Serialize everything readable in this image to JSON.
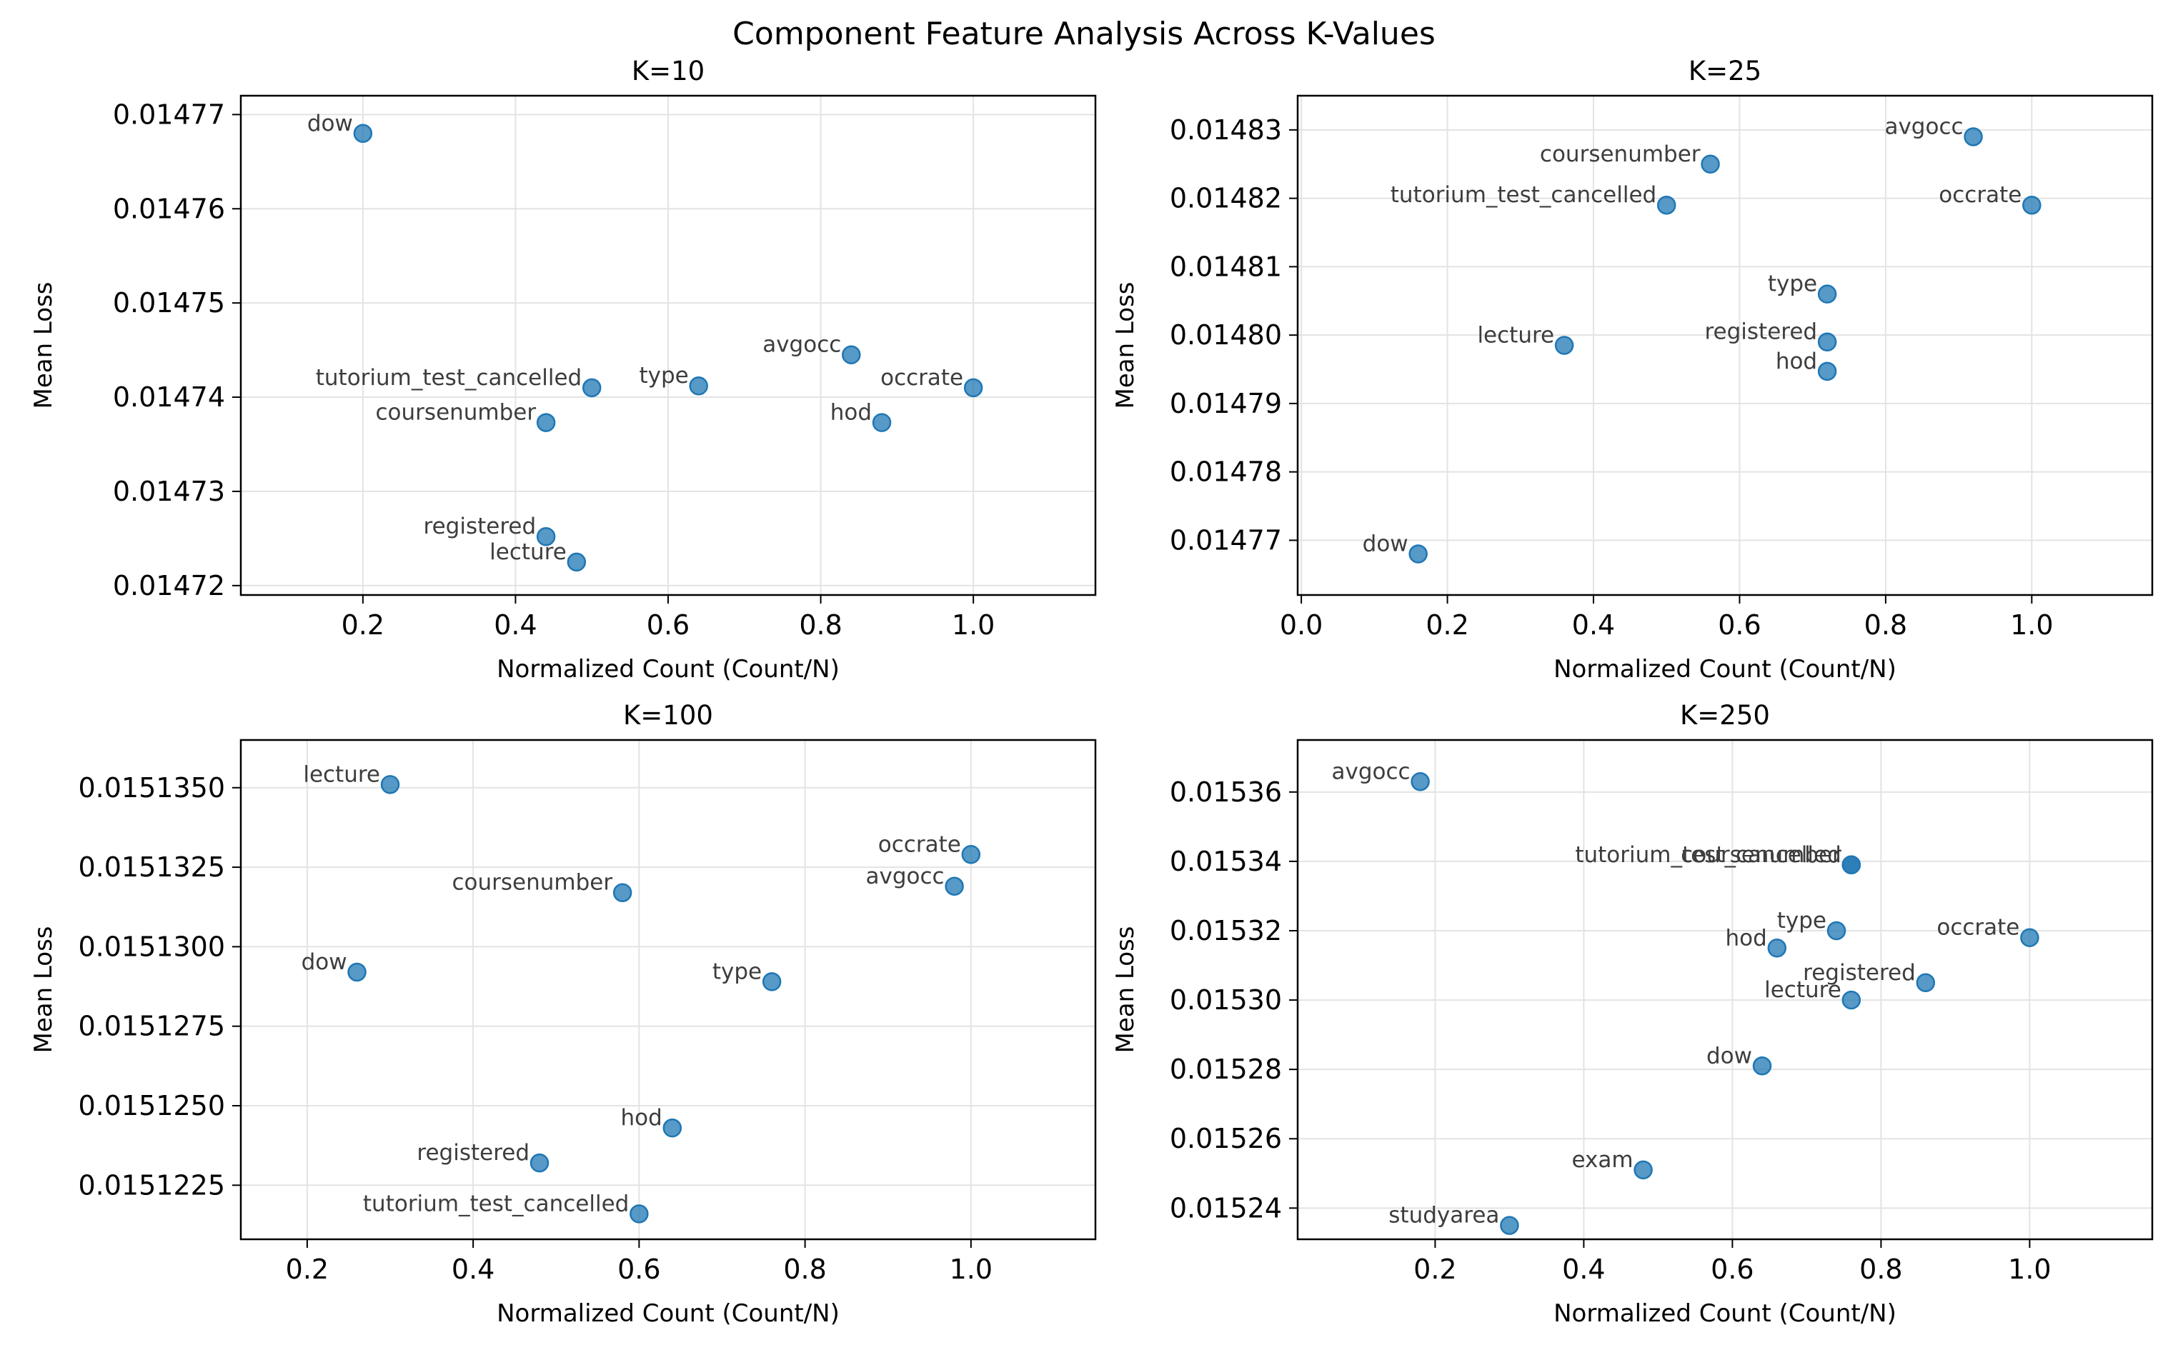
{
  "suptitle": "Component Feature Analysis Across K-Values",
  "colors": {
    "point": "#1f77b4",
    "grid": "#e3e3e3",
    "axis": "#000000",
    "label": "#3d3d3d"
  },
  "chart_data": [
    {
      "type": "scatter",
      "title": "K=10",
      "xlabel": "Normalized Count (Count/N)",
      "ylabel": "Mean Loss",
      "xlim": [
        0.04,
        1.16
      ],
      "ylim": [
        0.014719,
        0.014772
      ],
      "xticks": [
        0.2,
        0.4,
        0.6,
        0.8,
        1.0
      ],
      "xtick_labels": [
        "0.2",
        "0.4",
        "0.6",
        "0.8",
        "1.0"
      ],
      "yticks": [
        0.01472,
        0.01473,
        0.01474,
        0.01475,
        0.01476,
        0.01477
      ],
      "ytick_labels": [
        "0.01472",
        "0.01473",
        "0.01474",
        "0.01475",
        "0.01476",
        "0.01477"
      ],
      "grid": true,
      "points": [
        {
          "label": "dow",
          "x": 0.2,
          "y": 0.014768
        },
        {
          "label": "avgocc",
          "x": 0.84,
          "y": 0.0147445
        },
        {
          "label": "tutorium_test_cancelled",
          "x": 0.5,
          "y": 0.014741
        },
        {
          "label": "type",
          "x": 0.64,
          "y": 0.0147412
        },
        {
          "label": "occrate",
          "x": 1.0,
          "y": 0.014741
        },
        {
          "label": "coursenumber",
          "x": 0.44,
          "y": 0.0147373
        },
        {
          "label": "hod",
          "x": 0.88,
          "y": 0.0147373
        },
        {
          "label": "registered",
          "x": 0.44,
          "y": 0.0147252
        },
        {
          "label": "lecture",
          "x": 0.48,
          "y": 0.0147225
        }
      ]
    },
    {
      "type": "scatter",
      "title": "K=25",
      "xlabel": "Normalized Count (Count/N)",
      "ylabel": "Mean Loss",
      "xlim": [
        -0.005,
        1.165
      ],
      "ylim": [
        0.014762,
        0.014835
      ],
      "xticks": [
        0.0,
        0.2,
        0.4,
        0.6,
        0.8,
        1.0
      ],
      "xtick_labels": [
        "0.0",
        "0.2",
        "0.4",
        "0.6",
        "0.8",
        "1.0"
      ],
      "yticks": [
        0.01477,
        0.01478,
        0.01479,
        0.0148,
        0.01481,
        0.01482,
        0.01483
      ],
      "ytick_labels": [
        "0.01477",
        "0.01478",
        "0.01479",
        "0.01480",
        "0.01481",
        "0.01482",
        "0.01483"
      ],
      "grid": true,
      "points": [
        {
          "label": "avgocc",
          "x": 0.92,
          "y": 0.014829
        },
        {
          "label": "coursenumber",
          "x": 0.56,
          "y": 0.014825
        },
        {
          "label": "tutorium_test_cancelled",
          "x": 0.5,
          "y": 0.014819
        },
        {
          "label": "occrate",
          "x": 1.0,
          "y": 0.014819
        },
        {
          "label": "type",
          "x": 0.72,
          "y": 0.014806
        },
        {
          "label": "registered",
          "x": 0.72,
          "y": 0.014799
        },
        {
          "label": "lecture",
          "x": 0.36,
          "y": 0.0147985
        },
        {
          "label": "hod",
          "x": 0.72,
          "y": 0.0147947
        },
        {
          "label": "dow",
          "x": 0.16,
          "y": 0.014768
        }
      ]
    },
    {
      "type": "scatter",
      "title": "K=100",
      "xlabel": "Normalized Count (Count/N)",
      "ylabel": "Mean Loss",
      "xlim": [
        0.12,
        1.15
      ],
      "ylim": [
        0.0151208,
        0.0151365
      ],
      "xticks": [
        0.2,
        0.4,
        0.6,
        0.8,
        1.0
      ],
      "xtick_labels": [
        "0.2",
        "0.4",
        "0.6",
        "0.8",
        "1.0"
      ],
      "yticks": [
        0.0151225,
        0.015125,
        0.0151275,
        0.01513,
        0.0151325,
        0.015135
      ],
      "ytick_labels": [
        "0.0151225",
        "0.0151250",
        "0.0151275",
        "0.0151300",
        "0.0151325",
        "0.0151350"
      ],
      "grid": true,
      "points": [
        {
          "label": "lecture",
          "x": 0.3,
          "y": 0.0151351
        },
        {
          "label": "occrate",
          "x": 1.0,
          "y": 0.0151329
        },
        {
          "label": "coursenumber",
          "x": 0.58,
          "y": 0.0151317
        },
        {
          "label": "avgocc",
          "x": 0.98,
          "y": 0.0151319
        },
        {
          "label": "dow",
          "x": 0.26,
          "y": 0.0151292
        },
        {
          "label": "type",
          "x": 0.76,
          "y": 0.0151289
        },
        {
          "label": "hod",
          "x": 0.64,
          "y": 0.0151243
        },
        {
          "label": "registered",
          "x": 0.48,
          "y": 0.0151232
        },
        {
          "label": "tutorium_test_cancelled",
          "x": 0.6,
          "y": 0.0151216
        }
      ]
    },
    {
      "type": "scatter",
      "title": "K=250",
      "xlabel": "Normalized Count (Count/N)",
      "ylabel": "Mean Loss",
      "xlim": [
        0.015,
        1.165
      ],
      "ylim": [
        0.015231,
        0.015375
      ],
      "xticks": [
        0.2,
        0.4,
        0.6,
        0.8,
        1.0
      ],
      "xtick_labels": [
        "0.2",
        "0.4",
        "0.6",
        "0.8",
        "1.0"
      ],
      "yticks": [
        0.01524,
        0.01526,
        0.01528,
        0.0153,
        0.01532,
        0.01534,
        0.01536
      ],
      "ytick_labels": [
        "0.01524",
        "0.01526",
        "0.01528",
        "0.01530",
        "0.01532",
        "0.01534",
        "0.01536"
      ],
      "grid": true,
      "points": [
        {
          "label": "avgocc",
          "x": 0.18,
          "y": 0.015363
        },
        {
          "label": "tutorium_test_cancelled",
          "x": 0.76,
          "y": 0.015339
        },
        {
          "label": "coursenumber",
          "x": 0.76,
          "y": 0.015339
        },
        {
          "label": "type",
          "x": 0.74,
          "y": 0.01532
        },
        {
          "label": "hod",
          "x": 0.66,
          "y": 0.015315
        },
        {
          "label": "occrate",
          "x": 1.0,
          "y": 0.015318
        },
        {
          "label": "registered",
          "x": 0.86,
          "y": 0.015305
        },
        {
          "label": "lecture",
          "x": 0.76,
          "y": 0.0153
        },
        {
          "label": "dow",
          "x": 0.64,
          "y": 0.015281
        },
        {
          "label": "exam",
          "x": 0.48,
          "y": 0.015251
        },
        {
          "label": "studyarea",
          "x": 0.3,
          "y": 0.015235
        }
      ]
    }
  ]
}
